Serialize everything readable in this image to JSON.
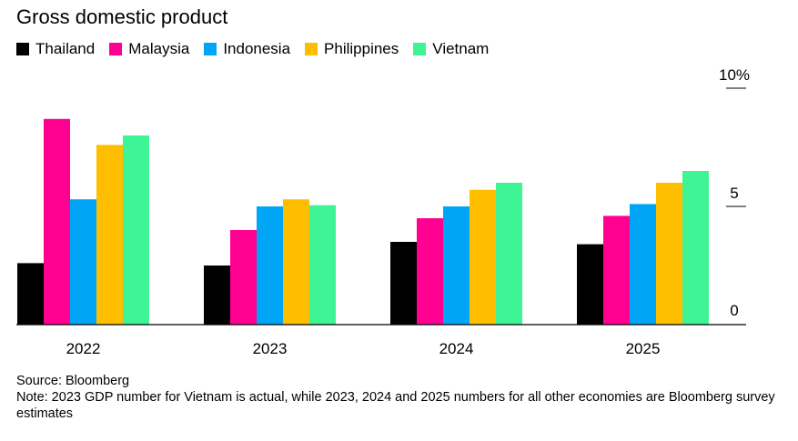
{
  "chart_data": {
    "type": "bar",
    "title": "Gross domestic product",
    "categories": [
      "2022",
      "2023",
      "2024",
      "2025"
    ],
    "series": [
      {
        "name": "Thailand",
        "color": "#000000",
        "values": [
          2.6,
          2.5,
          3.5,
          3.4
        ]
      },
      {
        "name": "Malaysia",
        "color": "#ff0090",
        "values": [
          8.7,
          4.0,
          4.5,
          4.6
        ]
      },
      {
        "name": "Indonesia",
        "color": "#00a6f5",
        "values": [
          5.3,
          5.0,
          5.0,
          5.1
        ]
      },
      {
        "name": "Philippines",
        "color": "#ffbf00",
        "values": [
          7.6,
          5.3,
          5.7,
          6.0
        ]
      },
      {
        "name": "Vietnam",
        "color": "#3ef494",
        "values": [
          8.0,
          5.05,
          6.0,
          6.5
        ]
      }
    ],
    "y_ticks": [
      {
        "value": 10,
        "label": "10%"
      },
      {
        "value": 5,
        "label": "5"
      },
      {
        "value": 0,
        "label": "0"
      }
    ],
    "ylim": [
      0,
      10
    ],
    "grid": false,
    "legend_position": "top-left"
  },
  "footer": {
    "source": "Source: Bloomberg",
    "note": "Note: 2023 GDP number for Vietnam is actual, while 2023, 2024 and 2025 numbers for all other economies are Bloomberg survey estimates"
  }
}
